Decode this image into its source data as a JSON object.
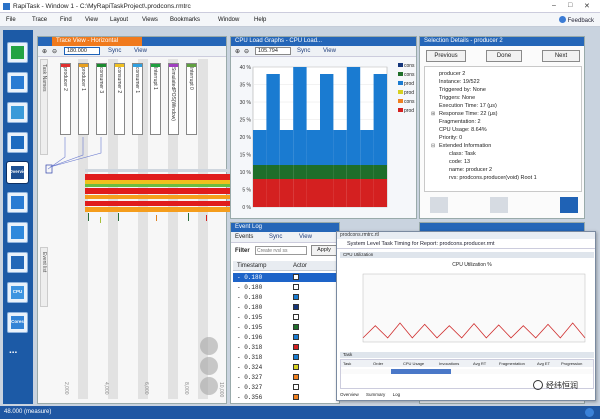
{
  "window": {
    "title": "RapiTask - Window 1 - C:\\MyRapiTaskProject\\.prodcons.rmtrc",
    "controls": [
      "–",
      "□",
      "✕"
    ]
  },
  "menu": {
    "items": [
      "File",
      "Trace",
      "Find",
      "View",
      "Layout",
      "Views",
      "Bookmarks",
      "Window",
      "Help"
    ],
    "feedback": "Feedback"
  },
  "sidebar": {
    "items": [
      {
        "name": "summary",
        "label": ""
      },
      {
        "name": "cpu",
        "label": ""
      },
      {
        "name": "timing",
        "label": ""
      },
      {
        "name": "tasks",
        "label": ""
      },
      {
        "name": "overview",
        "label": "Overvie"
      },
      {
        "name": "graphs",
        "label": ""
      },
      {
        "name": "events",
        "label": ""
      },
      {
        "name": "reports",
        "label": ""
      },
      {
        "name": "cpu2",
        "label": "CPU"
      },
      {
        "name": "cores",
        "label": "Cores"
      },
      {
        "name": "more",
        "label": "..."
      }
    ]
  },
  "trace_view": {
    "tab": "Trace View - Horizontal",
    "zoom_value": "180.000",
    "sync": "Sync",
    "view": "View",
    "tasks": [
      "producer 2",
      "producer 1",
      "consumer 3",
      "consumer 2",
      "consumer 1",
      "Interrupt 1",
      "SimulatedPOS(Window)",
      "Interrupt 0"
    ],
    "tag_colors": [
      "#e03030",
      "#e8a020",
      "#1a8a2e",
      "#f0c020",
      "#30a0e0",
      "#20a040",
      "#a040c0",
      "#60a040"
    ],
    "side_labels": [
      "Task Names",
      "Event list"
    ],
    "axis": [
      "2,000",
      "4,000",
      "6,000",
      "8,000",
      "10,000"
    ]
  },
  "cpu_load": {
    "tab": "CPU Load Graphs - CPU Load...",
    "value": "105.794",
    "sync": "Sync",
    "view": "View",
    "yticks": [
      "40 %",
      "35 %",
      "30 %",
      "25 %",
      "20 %",
      "15 %",
      "10 %",
      "5 %",
      "0 %"
    ],
    "legend": [
      "cons",
      "cons",
      "prod",
      "prod",
      "cons",
      "prod"
    ],
    "legend_colors": [
      "#14357a",
      "#1e6e2a",
      "#1a7bd1",
      "#d7d020",
      "#f08020",
      "#d42020"
    ]
  },
  "selection": {
    "tab": "Selection Details - producer 2",
    "prev": "Previous",
    "done": "Done",
    "next": "Next",
    "lines": [
      "producer 2",
      "Instance: 19/522",
      "Triggered by: None",
      "Triggers: None",
      "Execution Time: 17 (μs)",
      "Response Time: 22 (μs)",
      "Fragmentation: 2",
      "CPU Usage: 8.64%",
      "Priority: 0",
      "Extended Information",
      "class: Task",
      "code: 13",
      "name: producer 2",
      "rvs: prodcons.producer(void) Root 1"
    ]
  },
  "event_log": {
    "tab": "Event Log",
    "events": "Events",
    "sync": "Sync",
    "view": "View",
    "filter_label": "Filter",
    "filter_placeholder": "Create rvsl ss",
    "apply": "Apply",
    "col_timestamp": "Timestamp",
    "col_actor": "Actor",
    "rows": [
      {
        "ts": "0.180",
        "color": "#ffffff"
      },
      {
        "ts": "0.180",
        "color": "#ffffff"
      },
      {
        "ts": "0.180",
        "color": "#1a7bd1"
      },
      {
        "ts": "0.180",
        "color": "#14357a"
      },
      {
        "ts": "0.195",
        "color": "#ffffff"
      },
      {
        "ts": "0.195",
        "color": "#1e6e2a"
      },
      {
        "ts": "0.196",
        "color": "#1a7bd1"
      },
      {
        "ts": "0.318",
        "color": "#d42020"
      },
      {
        "ts": "0.318",
        "color": "#1a7bd1"
      },
      {
        "ts": "0.324",
        "color": "#d7d020"
      },
      {
        "ts": "0.327",
        "color": "#f08020"
      },
      {
        "ts": "0.327",
        "color": "#ffffff"
      },
      {
        "ts": "0.356",
        "color": "#f08020"
      }
    ]
  },
  "report": {
    "window_title": "prodcons.rmtrc.rtl",
    "header": "System Level Task Timing for Report: prodcons.producer.rmt",
    "section1": "CPU Utilization",
    "chart_title": "CPU Utilization %",
    "section2": "Task",
    "columns": [
      "Task",
      "Order",
      "CPU Usage",
      "Invocations",
      "Avg RT",
      "Fragmentation",
      "Avg ET",
      "Progression"
    ],
    "tabs": [
      "Overview",
      "Summary",
      "Log"
    ]
  },
  "status": {
    "text": "48.000 (measure)"
  },
  "watermark": "经纬恒润",
  "chart_data": [
    {
      "type": "area",
      "title": "CPU Load",
      "ylabel": "",
      "ylim": [
        0,
        40
      ],
      "yticks": [
        "40 %",
        "35 %",
        "30 %",
        "25 %",
        "20 %",
        "15 %",
        "10 %",
        "5 %",
        "0 %"
      ],
      "series": [
        {
          "name": "cons",
          "values": [
            8,
            8,
            8,
            8,
            8,
            8,
            8,
            8,
            8,
            8
          ]
        },
        {
          "name": "prod",
          "values": [
            4,
            4,
            4,
            4,
            4,
            4,
            4,
            4,
            4,
            4
          ]
        },
        {
          "name": "prod",
          "values": [
            10,
            26,
            10,
            28,
            10,
            26,
            10,
            28,
            10,
            26
          ]
        }
      ]
    },
    {
      "type": "line",
      "title": "CPU Utilization %",
      "ylim": [
        0,
        100
      ],
      "series": [
        {
          "name": "",
          "values": [
            6,
            24,
            6,
            28,
            6,
            26,
            6,
            24,
            6,
            27,
            6,
            25,
            6,
            24,
            6,
            26,
            6,
            28,
            6
          ]
        }
      ]
    }
  ]
}
